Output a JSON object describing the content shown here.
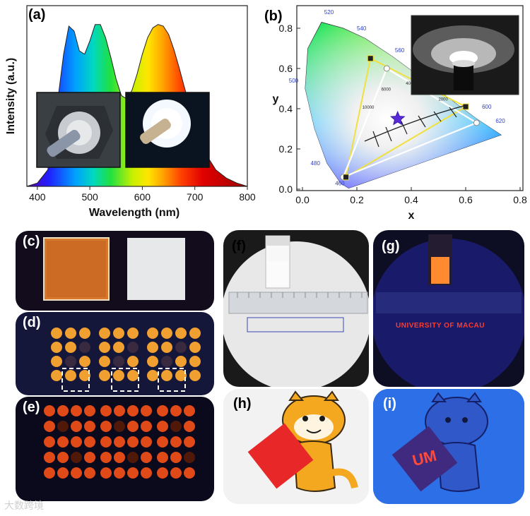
{
  "panels": {
    "a": {
      "label": "(a)",
      "y_axis_title": "Intensity (a.u.)",
      "x_axis_title": "Wavelength (nm)",
      "x_ticks": [
        "400",
        "500",
        "600",
        "700",
        "800"
      ]
    },
    "b": {
      "label": "(b)",
      "x_axis_title": "x",
      "y_axis_title": "y",
      "x_ticks": [
        "0.0",
        "0.2",
        "0.4",
        "0.6",
        "0.8"
      ],
      "y_ticks": [
        "0.0",
        "0.2",
        "0.4",
        "0.6",
        "0.8"
      ],
      "locus_labels": [
        "520",
        "540",
        "560",
        "500",
        "600",
        "620",
        "480",
        "460"
      ],
      "cct_labels": [
        "10000",
        "6000",
        "4000",
        "2000"
      ]
    },
    "c": {
      "label": "(c)"
    },
    "d": {
      "label": "(d)"
    },
    "e": {
      "label": "(e)"
    },
    "f": {
      "label": "(f)"
    },
    "g": {
      "label": "(g)",
      "sign_text": "UNIVERSITY OF MACAU"
    },
    "h": {
      "label": "(h)"
    },
    "i": {
      "label": "(i)"
    }
  },
  "chart_data": [
    {
      "type": "line",
      "title": "(a)",
      "xlabel": "Wavelength (nm)",
      "ylabel": "Intensity (a.u.)",
      "xlim": [
        380,
        800
      ],
      "x": [
        380,
        400,
        420,
        440,
        450,
        460,
        470,
        480,
        490,
        500,
        510,
        520,
        530,
        540,
        550,
        560,
        570,
        580,
        590,
        600,
        610,
        620,
        630,
        640,
        650,
        660,
        670,
        680,
        700,
        720,
        740,
        760,
        780,
        800
      ],
      "y": [
        0.0,
        0.02,
        0.1,
        0.55,
        0.8,
        0.97,
        0.94,
        0.82,
        0.8,
        0.88,
        0.98,
        0.98,
        0.9,
        0.78,
        0.65,
        0.55,
        0.53,
        0.58,
        0.68,
        0.8,
        0.9,
        0.96,
        0.98,
        0.97,
        0.92,
        0.83,
        0.72,
        0.6,
        0.38,
        0.2,
        0.1,
        0.05,
        0.02,
        0.0
      ]
    },
    {
      "type": "scatter",
      "title": "(b)",
      "xlabel": "x",
      "ylabel": "y",
      "xlim": [
        0.0,
        0.8
      ],
      "ylim": [
        0.0,
        0.85
      ],
      "series": [
        {
          "name": "yellow-gamut",
          "points": [
            [
              0.25,
              0.65
            ],
            [
              0.6,
              0.41
            ],
            [
              0.16,
              0.06
            ]
          ]
        },
        {
          "name": "white-gamut",
          "points": [
            [
              0.31,
              0.6
            ],
            [
              0.64,
              0.33
            ],
            [
              0.15,
              0.06
            ]
          ]
        },
        {
          "name": "white-point",
          "points": [
            [
              0.35,
              0.35
            ]
          ]
        }
      ]
    }
  ],
  "watermark": "大数跨境"
}
